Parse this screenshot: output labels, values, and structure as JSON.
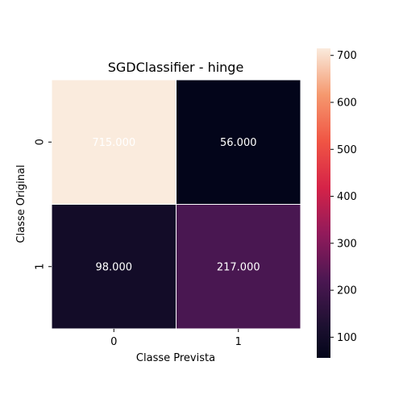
{
  "chart_data": {
    "type": "heatmap",
    "title": "SGDClassifier - hinge",
    "xlabel": "Classe Prevista",
    "ylabel": "Classe Original",
    "x_categories": [
      "0",
      "1"
    ],
    "y_categories": [
      "0",
      "1"
    ],
    "values": [
      [
        715,
        56
      ],
      [
        98,
        217
      ]
    ],
    "annotations": [
      [
        "715.000",
        "56.000"
      ],
      [
        "98.000",
        "217.000"
      ]
    ],
    "colormap": "rocket",
    "colorbar": {
      "range": [
        56,
        715
      ],
      "ticks": [
        "100",
        "200",
        "300",
        "400",
        "500",
        "600",
        "700"
      ],
      "tick_values": [
        100,
        200,
        300,
        400,
        500,
        600,
        700
      ]
    },
    "colors": {
      "low": "#03051a",
      "high": "#faebdd",
      "cell_border": "#ffffff",
      "annotation_text": "#ffffff"
    }
  }
}
